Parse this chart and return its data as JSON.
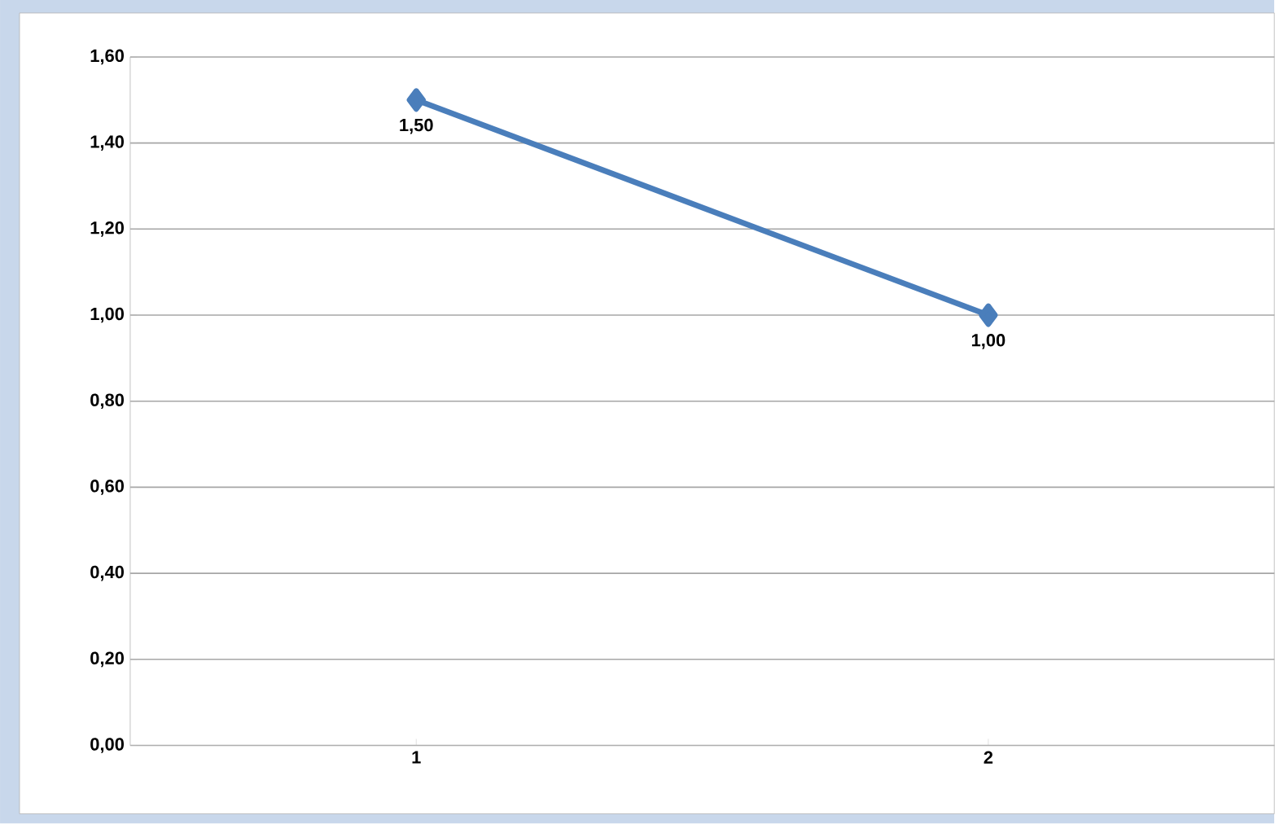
{
  "chart_data": {
    "type": "line",
    "categories": [
      "1",
      "2"
    ],
    "series": [
      {
        "color": "#4a7ebb",
        "values": [
          1.5,
          1.0
        ],
        "value_labels": [
          "1,50",
          "1,00"
        ]
      }
    ],
    "ylim": [
      0,
      1.6
    ],
    "yticks": [
      {
        "value": 0,
        "label": "0,00"
      },
      {
        "value": 0.2,
        "label": "0,20"
      },
      {
        "value": 0.4,
        "label": "0,40"
      },
      {
        "value": 0.6,
        "label": "0,60"
      },
      {
        "value": 0.8,
        "label": "0,80"
      },
      {
        "value": 1.0,
        "label": "1,00"
      },
      {
        "value": 1.2,
        "label": "1,20"
      },
      {
        "value": 1.4,
        "label": "1,40"
      },
      {
        "value": 1.6,
        "label": "1,60"
      }
    ],
    "grid": "y",
    "marker": "diamond",
    "line_style": "solid"
  }
}
